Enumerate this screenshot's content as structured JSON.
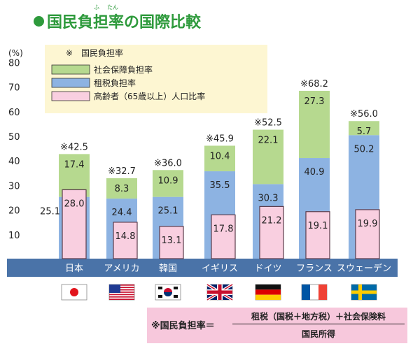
{
  "title": "国民負担率の国際比較",
  "title_ruby": [
    "ふ",
    "たん"
  ],
  "chart_data": {
    "type": "bar",
    "categories": [
      "日本",
      "アメリカ",
      "韓国",
      "イギリス",
      "ドイツ",
      "フランス",
      "スウェーデン"
    ],
    "series": [
      {
        "name": "租税負担率",
        "values": [
          25.1,
          24.4,
          25.1,
          35.5,
          30.3,
          40.9,
          50.2
        ],
        "color": "#8db3e2"
      },
      {
        "name": "社会保障負担率",
        "values": [
          17.4,
          8.3,
          10.9,
          10.4,
          22.1,
          27.3,
          5.7
        ],
        "color": "#b6d98f"
      },
      {
        "name": "高齢者（65歳以上）人口比率",
        "values": [
          28.0,
          14.8,
          13.1,
          17.8,
          21.2,
          19.1,
          19.9
        ],
        "color": "#f9cfe0"
      }
    ],
    "totals": [
      "※42.5",
      "※32.7",
      "※36.0",
      "※45.9",
      "※52.5",
      "※68.2",
      "※56.0"
    ],
    "y_unit": "(%)",
    "y_ticks": [
      10,
      20,
      30,
      40,
      50,
      60,
      70,
      80
    ],
    "ylim": [
      0,
      80
    ],
    "grid": false,
    "legend_position": "top-left",
    "legend_title": "※　国民負担率",
    "flags": [
      "japan-flag",
      "usa-flag",
      "korea-flag",
      "uk-flag",
      "germany-flag",
      "france-flag",
      "sweden-flag"
    ],
    "axis_band_color": "#4a73a8"
  },
  "formula": {
    "lhs": "※国民負担率＝",
    "numerator": "租税（国税＋地方税）＋社会保険料",
    "denominator": "国民所得"
  }
}
